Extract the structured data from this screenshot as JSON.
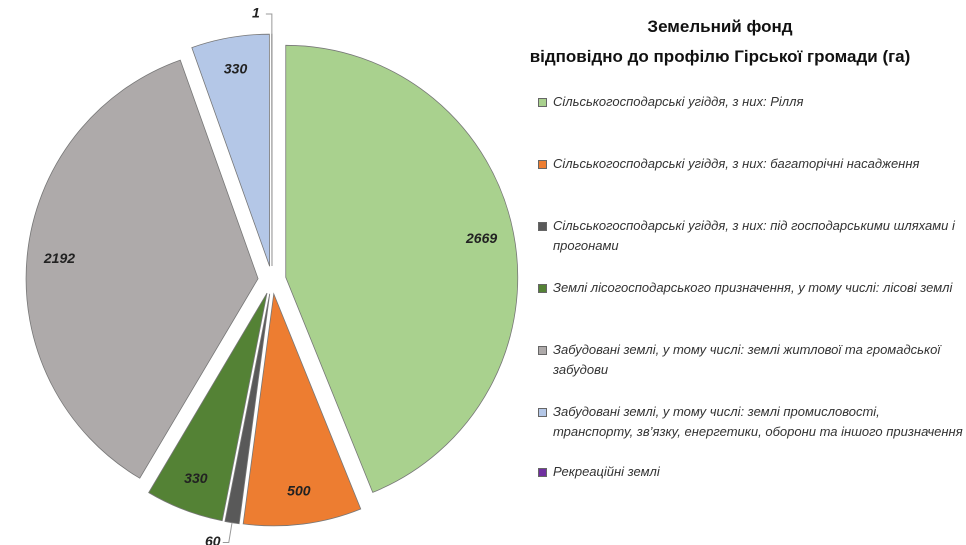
{
  "chart_data": {
    "type": "pie",
    "title": "Земельний фонд",
    "subtitle": "відповідно до профілю Гірської громади (га)",
    "categories": [
      "Сільськогосподарські угіддя, з них: Рілля",
      "Сільськогосподарські угіддя, з них: багаторічні насадження",
      "Сільськогосподарські угіддя, з них: під господарськими шляхами і прогонами",
      "Землі лісогосподарського призначення,  у тому числі: лісові землі",
      "Забудовані землі,  у тому числі: землі житлової та громадської забудови",
      "Забудовані землі,  у тому числі: землі промисловості, транспорту, зв’язку, енергетики, оборони та іншого призначення",
      "Рекреаційні землі"
    ],
    "values": [
      2669,
      500,
      60,
      330,
      2192,
      330,
      1
    ],
    "colors": [
      "#a9d18e",
      "#ed7d31",
      "#595959",
      "#548235",
      "#aeaaaa",
      "#b4c7e7",
      "#7030a0"
    ],
    "legend": "right"
  }
}
